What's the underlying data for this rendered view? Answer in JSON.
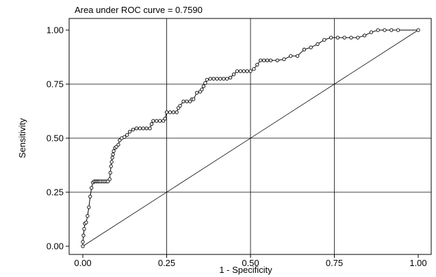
{
  "chart_data": {
    "type": "line",
    "title": "Area under ROC curve = 0.7590",
    "xlabel": "1 - Specificity",
    "ylabel": "Sensitivity",
    "xlim": [
      0,
      1
    ],
    "ylim": [
      0,
      1
    ],
    "x_ticks": [
      "0.00",
      "0.25",
      "0.50",
      "0.75",
      "1.00"
    ],
    "y_ticks": [
      "0.00",
      "0.25",
      "0.50",
      "0.75",
      "1.00"
    ],
    "grid": true,
    "series": [
      {
        "x": [
          0.0,
          0.0,
          0.002,
          0.004,
          0.006,
          0.01,
          0.014,
          0.018,
          0.022,
          0.026,
          0.03,
          0.034,
          0.038,
          0.042,
          0.046,
          0.05,
          0.055,
          0.06,
          0.065,
          0.07,
          0.075,
          0.08,
          0.082,
          0.084,
          0.086,
          0.088,
          0.09,
          0.092,
          0.096,
          0.1,
          0.106,
          0.11,
          0.116,
          0.124,
          0.132,
          0.14,
          0.15,
          0.16,
          0.17,
          0.18,
          0.19,
          0.2,
          0.205,
          0.21,
          0.22,
          0.23,
          0.24,
          0.245,
          0.25,
          0.26,
          0.27,
          0.28,
          0.285,
          0.29,
          0.3,
          0.31,
          0.32,
          0.325,
          0.33,
          0.34,
          0.35,
          0.355,
          0.36,
          0.365,
          0.37,
          0.38,
          0.39,
          0.4,
          0.41,
          0.42,
          0.43,
          0.44,
          0.45,
          0.46,
          0.47,
          0.48,
          0.49,
          0.5,
          0.51,
          0.52,
          0.53,
          0.54,
          0.55,
          0.56,
          0.58,
          0.6,
          0.62,
          0.64,
          0.66,
          0.68,
          0.7,
          0.72,
          0.74,
          0.76,
          0.78,
          0.8,
          0.82,
          0.84,
          0.86,
          0.88,
          0.9,
          0.92,
          0.94,
          1.0
        ],
        "y": [
          0.0,
          0.02,
          0.05,
          0.08,
          0.105,
          0.11,
          0.14,
          0.18,
          0.23,
          0.27,
          0.295,
          0.3,
          0.3,
          0.3,
          0.3,
          0.3,
          0.3,
          0.3,
          0.3,
          0.3,
          0.3,
          0.31,
          0.34,
          0.37,
          0.39,
          0.41,
          0.425,
          0.44,
          0.455,
          0.46,
          0.47,
          0.49,
          0.5,
          0.505,
          0.515,
          0.53,
          0.54,
          0.545,
          0.545,
          0.545,
          0.545,
          0.545,
          0.565,
          0.58,
          0.58,
          0.58,
          0.58,
          0.59,
          0.62,
          0.62,
          0.62,
          0.62,
          0.64,
          0.65,
          0.67,
          0.67,
          0.67,
          0.68,
          0.68,
          0.71,
          0.715,
          0.725,
          0.74,
          0.755,
          0.77,
          0.775,
          0.775,
          0.775,
          0.775,
          0.775,
          0.775,
          0.78,
          0.795,
          0.81,
          0.81,
          0.81,
          0.81,
          0.81,
          0.82,
          0.84,
          0.86,
          0.86,
          0.86,
          0.86,
          0.86,
          0.865,
          0.88,
          0.88,
          0.91,
          0.92,
          0.935,
          0.955,
          0.965,
          0.965,
          0.965,
          0.965,
          0.965,
          0.975,
          0.99,
          1.0,
          1.0,
          1.0,
          1.0,
          1.0
        ]
      },
      {
        "x": [
          0,
          1
        ],
        "y": [
          0,
          1
        ]
      }
    ]
  }
}
